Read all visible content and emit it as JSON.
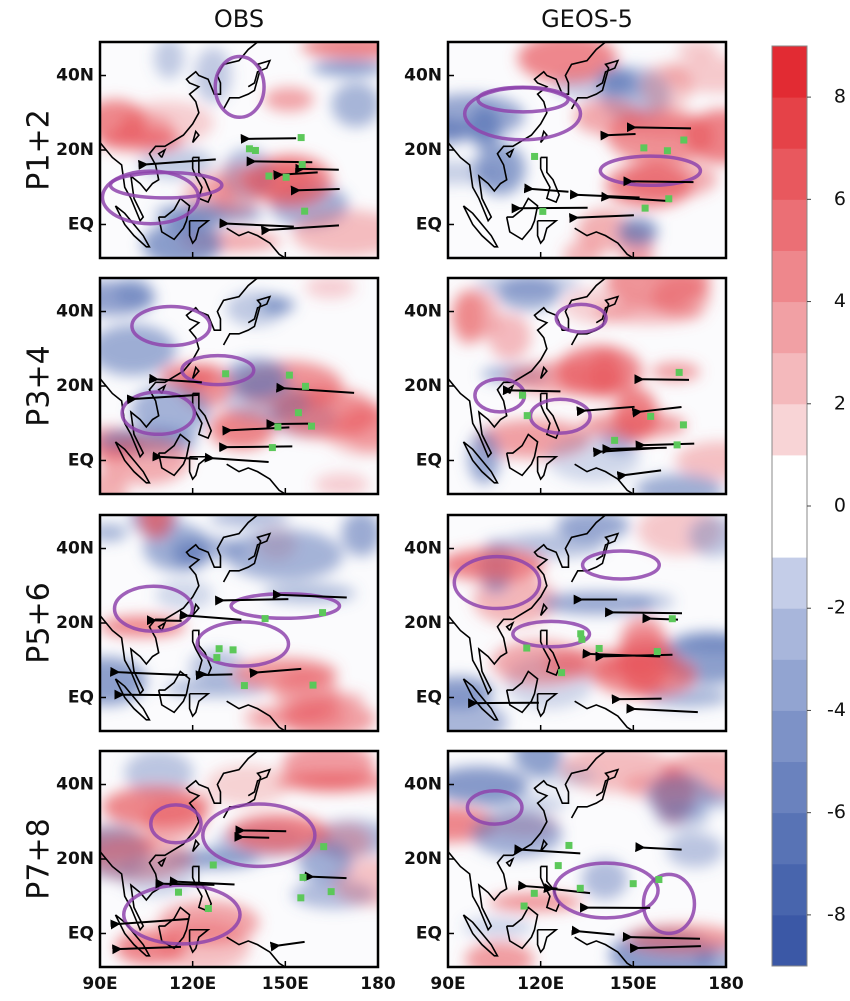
{
  "columns": [
    "OBS",
    "GEOS-5"
  ],
  "rows": [
    "P1+2",
    "P3+4",
    "P5+6",
    "P7+8"
  ],
  "lat_lim": [
    -9,
    49
  ],
  "lon_lim": [
    90,
    180
  ],
  "lat_ticks": [
    {
      "value": 40,
      "label": "40N"
    },
    {
      "value": 20,
      "label": "20N"
    },
    {
      "value": 0,
      "label": "EQ"
    }
  ],
  "lon_ticks": [
    {
      "value": 90,
      "label": "90E"
    },
    {
      "value": 120,
      "label": "120E"
    },
    {
      "value": 150,
      "label": "150E"
    },
    180
  ],
  "colorbar": {
    "lim": [
      -9,
      9
    ],
    "ticks": [
      8,
      6,
      4,
      2,
      0,
      -2,
      -4,
      -6,
      -8
    ],
    "colors": [
      "#3b58a6",
      "#4865ad",
      "#5873b5",
      "#6a82be",
      "#7d92c7",
      "#92a4d1",
      "#a8b6db",
      "#c4cde8",
      "#ffffff",
      "#ffffff",
      "#f8d4d6",
      "#f4b9bc",
      "#f1a0a4",
      "#ee878c",
      "#eb6f75",
      "#e8585e",
      "#e54248",
      "#e22b33"
    ]
  }
}
